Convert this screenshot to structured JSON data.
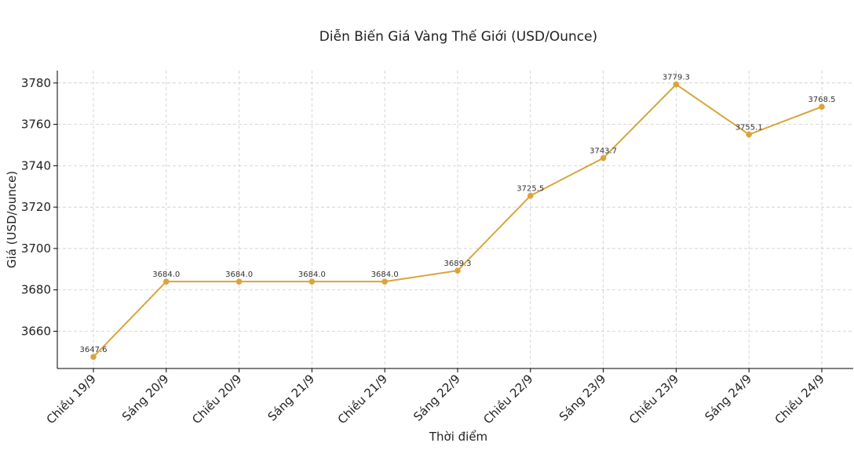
{
  "chart_data": {
    "type": "line",
    "title": "Diễn Biến Giá Vàng Thế Giới (USD/Ounce)",
    "xlabel": "Thời điểm",
    "ylabel": "Giá (USD/ounce)",
    "categories": [
      "Chiều 19/9",
      "Sáng 20/9",
      "Chiều 20/9",
      "Sáng 21/9",
      "Chiều 21/9",
      "Sáng 22/9",
      "Chiều 22/9",
      "Sáng 23/9",
      "Chiều 23/9",
      "Sáng 24/9",
      "Chiều 24/9"
    ],
    "series": [
      {
        "values": [
          3647.6,
          3684.0,
          3684.0,
          3684.0,
          3684.0,
          3689.3,
          3725.5,
          3743.7,
          3779.3,
          3755.1,
          3768.5
        ],
        "labels": [
          "3647.6",
          "3684.0",
          "3684.0",
          "3684.0",
          "3684.0",
          "3689.3",
          "3725.5",
          "3743.7",
          "3779.3",
          "3755.1",
          "3768.5"
        ],
        "color": "#DAA43A"
      }
    ],
    "yticks": [
      3660,
      3680,
      3700,
      3720,
      3740,
      3760,
      3780
    ],
    "ylim": [
      3642,
      3786
    ],
    "grid": true,
    "legend": "none"
  }
}
